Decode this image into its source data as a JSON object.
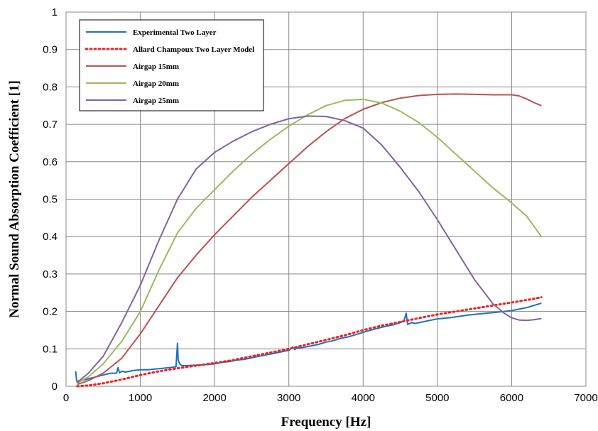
{
  "chart_data": {
    "type": "line",
    "xlabel": "Frequency [Hz]",
    "ylabel": "Normal Sound Absorption Coefficient [1]",
    "xlim": [
      0,
      7000
    ],
    "ylim": [
      0,
      1
    ],
    "x_ticks": [
      0,
      1000,
      2000,
      3000,
      4000,
      5000,
      6000,
      7000
    ],
    "y_ticks": [
      0,
      0.1,
      0.2,
      0.3,
      0.4,
      0.5,
      0.6,
      0.7,
      0.8,
      0.9,
      1
    ],
    "x_tick_labels": [
      "0",
      "1000",
      "2000",
      "3000",
      "4000",
      "5000",
      "6000",
      "7000"
    ],
    "y_tick_labels": [
      "0",
      "0.1",
      "0.2",
      "0.3",
      "0.4",
      "0.5",
      "0.6",
      "0.7",
      "0.8",
      "0.9",
      "1"
    ],
    "grid": true,
    "legend_position": "top-left",
    "series": [
      {
        "name": "Experimental Two Layer",
        "color": "#1f6fc1",
        "style": "solid",
        "x": [
          130,
          140,
          150,
          170,
          200,
          300,
          400,
          500,
          600,
          680,
          700,
          720,
          750,
          800,
          900,
          1000,
          1100,
          1200,
          1300,
          1400,
          1480,
          1500,
          1510,
          1530,
          1560,
          1600,
          1700,
          1800,
          1900,
          2000,
          2100,
          2200,
          2300,
          2400,
          2500,
          2600,
          2700,
          2800,
          2900,
          3000,
          3050,
          3080,
          3100,
          3200,
          3300,
          3400,
          3500,
          3600,
          3700,
          3800,
          3900,
          4000,
          4100,
          4200,
          4300,
          4400,
          4500,
          4550,
          4580,
          4600,
          4650,
          4700,
          4800,
          4900,
          5000,
          5100,
          5200,
          5300,
          5400,
          5500,
          5600,
          5700,
          5800,
          5900,
          6000,
          6100,
          6200,
          6300,
          6400
        ],
        "y": [
          0.04,
          0.02,
          0.01,
          0.015,
          0.015,
          0.02,
          0.025,
          0.03,
          0.035,
          0.035,
          0.05,
          0.036,
          0.04,
          0.038,
          0.042,
          0.044,
          0.044,
          0.046,
          0.048,
          0.05,
          0.052,
          0.115,
          0.07,
          0.06,
          0.055,
          0.055,
          0.056,
          0.057,
          0.058,
          0.06,
          0.064,
          0.066,
          0.07,
          0.072,
          0.076,
          0.08,
          0.084,
          0.088,
          0.092,
          0.096,
          0.105,
          0.098,
          0.102,
          0.104,
          0.108,
          0.112,
          0.118,
          0.122,
          0.128,
          0.132,
          0.138,
          0.144,
          0.15,
          0.155,
          0.16,
          0.164,
          0.17,
          0.175,
          0.195,
          0.165,
          0.17,
          0.168,
          0.172,
          0.176,
          0.18,
          0.182,
          0.184,
          0.187,
          0.19,
          0.192,
          0.194,
          0.196,
          0.198,
          0.2,
          0.202,
          0.206,
          0.21,
          0.216,
          0.222
        ]
      },
      {
        "name": "Allard Champoux Two Layer Model",
        "color": "#ee2222",
        "style": "dotted",
        "x": [
          150,
          300,
          500,
          750,
          1000,
          1250,
          1500,
          1750,
          2000,
          2250,
          2500,
          2750,
          3000,
          3250,
          3500,
          3750,
          4000,
          4250,
          4500,
          4750,
          5000,
          5250,
          5500,
          5750,
          6000,
          6250,
          6400
        ],
        "y": [
          0.0,
          0.002,
          0.008,
          0.018,
          0.03,
          0.04,
          0.048,
          0.055,
          0.062,
          0.07,
          0.08,
          0.09,
          0.1,
          0.112,
          0.124,
          0.136,
          0.15,
          0.162,
          0.172,
          0.182,
          0.192,
          0.2,
          0.208,
          0.216,
          0.224,
          0.232,
          0.238
        ]
      },
      {
        "name": "Airgap 15mm",
        "color": "#c0504d",
        "style": "solid",
        "x": [
          150,
          300,
          500,
          750,
          1000,
          1250,
          1500,
          1750,
          2000,
          2250,
          2500,
          2750,
          3000,
          3250,
          3500,
          3750,
          4000,
          4250,
          4500,
          4750,
          5000,
          5250,
          5500,
          5750,
          6000,
          6100,
          6200,
          6300,
          6400
        ],
        "y": [
          0.005,
          0.015,
          0.035,
          0.075,
          0.14,
          0.215,
          0.29,
          0.35,
          0.405,
          0.455,
          0.505,
          0.55,
          0.595,
          0.64,
          0.68,
          0.715,
          0.74,
          0.758,
          0.77,
          0.777,
          0.78,
          0.781,
          0.78,
          0.779,
          0.779,
          0.776,
          0.768,
          0.758,
          0.75
        ]
      },
      {
        "name": "Airgap 20mm",
        "color": "#9bbb59",
        "style": "solid",
        "x": [
          150,
          300,
          500,
          750,
          1000,
          1250,
          1500,
          1750,
          2000,
          2250,
          2500,
          2750,
          3000,
          3250,
          3500,
          3750,
          4000,
          4250,
          4500,
          4750,
          5000,
          5250,
          5500,
          5750,
          6000,
          6200,
          6400
        ],
        "y": [
          0.008,
          0.025,
          0.06,
          0.12,
          0.2,
          0.31,
          0.41,
          0.475,
          0.525,
          0.575,
          0.62,
          0.66,
          0.695,
          0.725,
          0.75,
          0.764,
          0.767,
          0.757,
          0.735,
          0.705,
          0.665,
          0.62,
          0.575,
          0.53,
          0.49,
          0.455,
          0.4
        ]
      },
      {
        "name": "Airgap 25mm",
        "color": "#8064a2",
        "style": "solid",
        "x": [
          150,
          300,
          500,
          750,
          1000,
          1250,
          1500,
          1750,
          2000,
          2250,
          2500,
          2750,
          3000,
          3250,
          3500,
          3750,
          4000,
          4250,
          4500,
          4750,
          5000,
          5250,
          5500,
          5750,
          5900,
          6000,
          6100,
          6200,
          6300,
          6400
        ],
        "y": [
          0.01,
          0.035,
          0.08,
          0.17,
          0.27,
          0.39,
          0.5,
          0.58,
          0.625,
          0.655,
          0.68,
          0.7,
          0.715,
          0.722,
          0.721,
          0.71,
          0.69,
          0.645,
          0.585,
          0.52,
          0.445,
          0.365,
          0.285,
          0.22,
          0.195,
          0.183,
          0.177,
          0.176,
          0.178,
          0.181
        ]
      }
    ]
  }
}
